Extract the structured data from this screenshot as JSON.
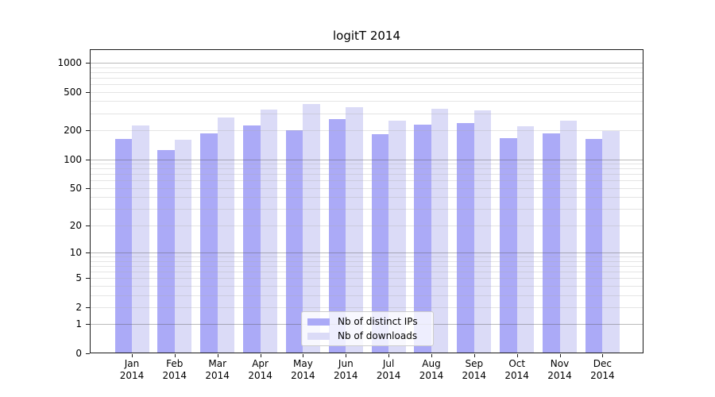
{
  "chart_data": {
    "type": "bar",
    "title": "logitT 2014",
    "categories": [
      "Jan",
      "Feb",
      "Mar",
      "Apr",
      "May",
      "Jun",
      "Jul",
      "Aug",
      "Sep",
      "Oct",
      "Nov",
      "Dec"
    ],
    "x_tick_year": "2014",
    "series": [
      {
        "name": "Nb of distinct IPs",
        "color": "#abaaf7",
        "values": [
          163,
          125,
          185,
          226,
          201,
          262,
          183,
          230,
          238,
          166,
          186,
          163
        ]
      },
      {
        "name": "Nb of downloads",
        "color": "#dbdbf7",
        "values": [
          224,
          159,
          272,
          330,
          374,
          348,
          252,
          335,
          322,
          221,
          252,
          197
        ]
      }
    ],
    "y_ticks": [
      1000,
      500,
      200,
      100,
      50,
      20,
      10,
      5,
      2,
      1,
      0
    ],
    "y_scale": "log10(value+1)",
    "ylim": [
      0,
      1380
    ],
    "xlabel": "",
    "ylabel": "",
    "grid": "horizontal; light minor lines at 2-9 per decade, darker lines at 1, 10, 100, 1000, drawn over bars",
    "legend_position": "lower center, inside plot"
  }
}
